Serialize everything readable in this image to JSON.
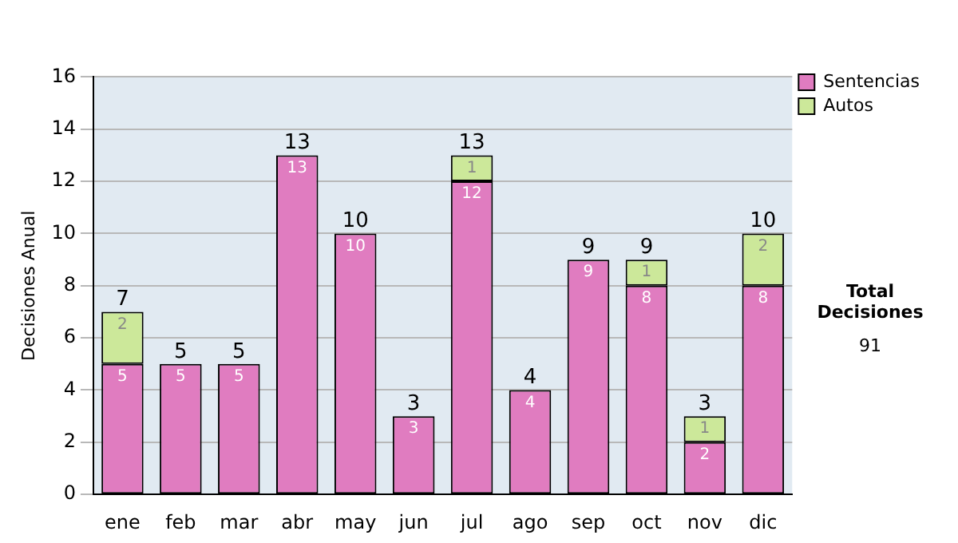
{
  "chart_data": {
    "type": "bar",
    "ylabel": "Decisiones Anual",
    "categories": [
      "ene",
      "feb",
      "mar",
      "abr",
      "may",
      "jun",
      "jul",
      "ago",
      "sep",
      "oct",
      "nov",
      "dic"
    ],
    "series": [
      {
        "name": "Sentencias",
        "color": "#e07cc0",
        "values": [
          5,
          5,
          5,
          13,
          10,
          3,
          12,
          4,
          9,
          8,
          2,
          8
        ]
      },
      {
        "name": "Autos",
        "color": "#cce89a",
        "values": [
          2,
          null,
          null,
          null,
          null,
          null,
          1,
          null,
          null,
          1,
          1,
          2
        ]
      }
    ],
    "stacked": true,
    "data_labels": true,
    "totals": [
      "7",
      "5",
      "5",
      "13",
      "10",
      "3",
      "13",
      "4",
      "9",
      "9",
      "3",
      "10"
    ],
    "ylim": [
      0,
      16
    ],
    "yticks": [
      0,
      2,
      4,
      6,
      8,
      10,
      12,
      14,
      16
    ],
    "grid": "y",
    "legend": "right",
    "annotations": [
      "Total Decisiones",
      "91"
    ]
  }
}
